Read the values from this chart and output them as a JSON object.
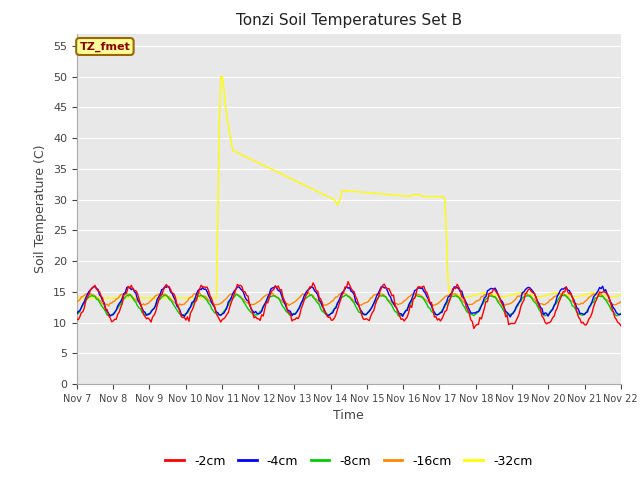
{
  "title": "Tonzi Soil Temperatures Set B",
  "xlabel": "Time",
  "ylabel": "Soil Temperature (C)",
  "ylim": [
    0,
    57
  ],
  "yticks": [
    0,
    5,
    10,
    15,
    20,
    25,
    30,
    35,
    40,
    45,
    50,
    55
  ],
  "xtick_labels": [
    "Nov 7",
    "Nov 8",
    "Nov 9",
    "Nov 10",
    "Nov 11",
    "Nov 12",
    "Nov 13",
    "Nov 14",
    "Nov 15",
    "Nov 16",
    "Nov 17",
    "Nov 18",
    "Nov 19",
    "Nov 20",
    "Nov 21",
    "Nov 22"
  ],
  "legend_labels": [
    "-2cm",
    "-4cm",
    "-8cm",
    "-16cm",
    "-32cm"
  ],
  "legend_colors": [
    "#ff0000",
    "#0000ff",
    "#00cc00",
    "#ff8800",
    "#ffff00"
  ],
  "annotation_text": "TZ_fmet",
  "annotation_bg": "#ffff99",
  "annotation_border": "#996600",
  "annotation_text_color": "#880000",
  "fig_bg_color": "#ffffff",
  "plot_bg_color": "#e8e8e8",
  "grid_color": "#ffffff",
  "n_points": 360
}
